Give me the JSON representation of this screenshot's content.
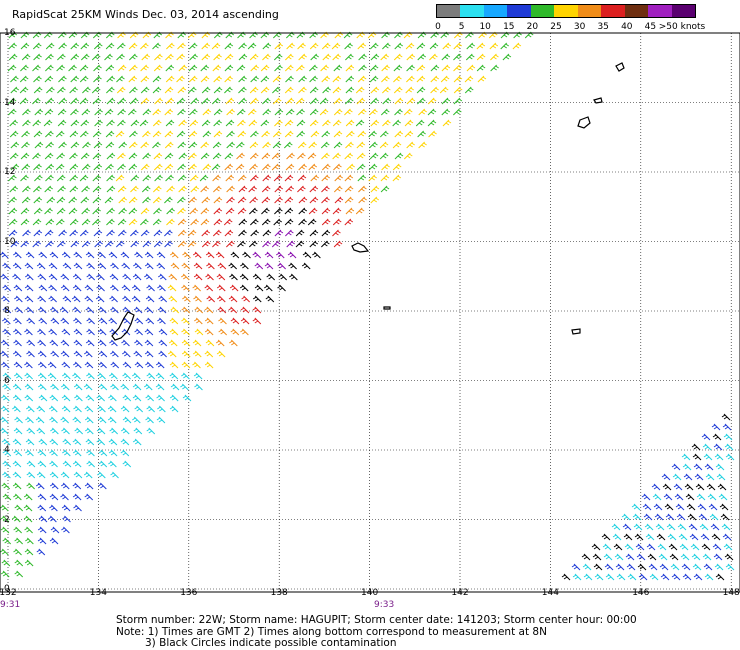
{
  "title": "RapidScat 25KM Winds Dec. 03, 2014 ascending",
  "legend": {
    "labels": [
      "0",
      "5",
      "10",
      "15",
      "20",
      "25",
      "30",
      "35",
      "40",
      "45",
      ">50 knots"
    ],
    "colors": [
      "#7c7c7c",
      "#2ce0f0",
      "#17a8ff",
      "#1f3bd6",
      "#2fb92a",
      "#ffd400",
      "#f08c18",
      "#dc2020",
      "#6e2e10",
      "#a020c0",
      "#5a0070"
    ]
  },
  "map": {
    "lat_ticks": [
      "16",
      "14",
      "12",
      "10",
      "8",
      "6",
      "4",
      "2",
      "0"
    ],
    "lon_ticks": [
      "132",
      "134",
      "136",
      "138",
      "140",
      "142",
      "144",
      "146",
      "148"
    ],
    "time_labels": [
      "9:31",
      "9:33"
    ]
  },
  "storm_info": "Storm number: 22W;  Storm name: HAGUPIT;  Storm center date: 141203;  Storm center hour: 00:00",
  "notes": [
    "Note: 1) Times are GMT  2) Times along bottom correspond to measurement at 8N",
    "3) Black Circles indicate possible contamination"
  ],
  "barb_colors": {
    "calm": "#1fd0e0",
    "light": "#1f3bd6",
    "moderate": "#2fb92a",
    "fresh": "#ffd400",
    "strong": "#f08c18",
    "gale": "#dc2020",
    "storm": "#000000",
    "violent": "#8a10b0"
  }
}
